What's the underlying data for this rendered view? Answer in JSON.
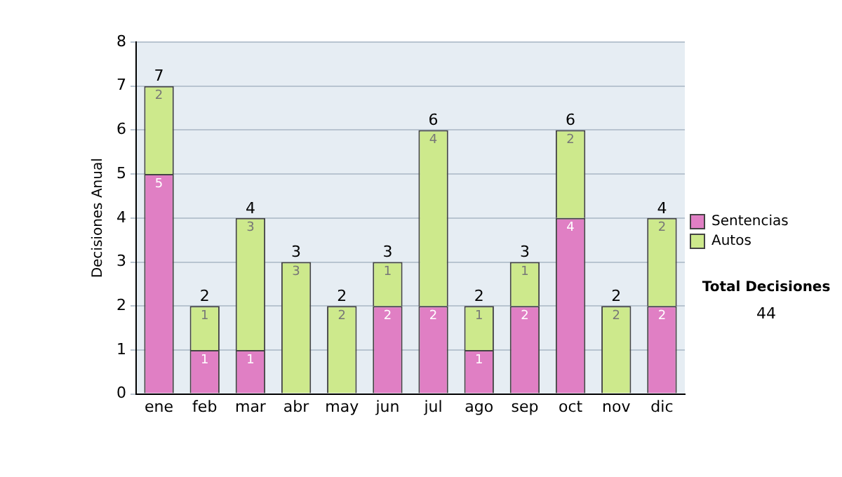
{
  "chart_data": {
    "type": "bar",
    "stacked": true,
    "ylabel": "Decisiones Anual",
    "categories": [
      "ene",
      "feb",
      "mar",
      "abr",
      "may",
      "jun",
      "jul",
      "ago",
      "sep",
      "oct",
      "nov",
      "dic"
    ],
    "series": [
      {
        "name": "Sentencias",
        "color": "#e07fc4",
        "values": [
          5,
          1,
          1,
          0,
          0,
          2,
          2,
          1,
          2,
          4,
          0,
          2
        ],
        "value_labels": [
          "5",
          "1",
          "1",
          null,
          null,
          "2",
          "2",
          "1",
          "2",
          "4",
          null,
          "2"
        ]
      },
      {
        "name": "Autos",
        "color": "#cde98c",
        "values": [
          2,
          1,
          3,
          3,
          2,
          1,
          4,
          1,
          1,
          2,
          2,
          2
        ],
        "value_labels": [
          "2",
          "1",
          "3",
          "3",
          "2",
          "1",
          "4",
          "1",
          "1",
          "2",
          "2",
          "2"
        ]
      }
    ],
    "totals": [
      "7",
      "2",
      "4",
      "3",
      "2",
      "3",
      "6",
      "2",
      "3",
      "6",
      "2",
      "4"
    ],
    "ylim": [
      0,
      8
    ],
    "yticks": [
      0,
      1,
      2,
      3,
      4,
      5,
      6,
      7,
      8
    ],
    "grid": "y",
    "legend": "right",
    "annotations": [
      "Total Decisiones",
      "44"
    ]
  }
}
